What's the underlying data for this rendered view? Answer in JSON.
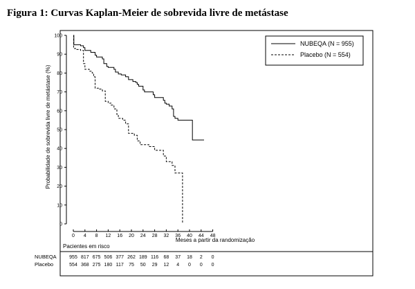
{
  "figure_title": "Figura 1: Curvas Kaplan-Meier de sobrevida livre de metástase",
  "chart_data": {
    "type": "line",
    "title": "Figura 1: Curvas Kaplan-Meier de sobrevida livre de metástase",
    "xlabel": "Meses a partir da randomização",
    "ylabel": "Probabilidade de sobrevida livre de metástase (%)",
    "xlim": [
      0,
      48
    ],
    "ylim": [
      0,
      100
    ],
    "xticks": [
      0,
      4,
      8,
      12,
      16,
      20,
      24,
      28,
      32,
      36,
      40,
      44,
      48
    ],
    "yticks": [
      0,
      10,
      20,
      30,
      40,
      50,
      60,
      70,
      80,
      90,
      100
    ],
    "grid": false,
    "legend_position": "top-right",
    "series": [
      {
        "name": "NUBEQA (N = 955)",
        "style": "solid",
        "color": "#000000",
        "steps": [
          [
            0,
            100
          ],
          [
            0.2,
            95
          ],
          [
            2.5,
            94.5
          ],
          [
            3.5,
            93.5
          ],
          [
            4,
            92
          ],
          [
            6,
            91
          ],
          [
            7.5,
            89.5
          ],
          [
            8,
            88.5
          ],
          [
            10,
            87.5
          ],
          [
            10.5,
            85
          ],
          [
            11.5,
            83.5
          ],
          [
            12,
            83
          ],
          [
            14,
            82
          ],
          [
            14.5,
            80.5
          ],
          [
            15.5,
            79.5
          ],
          [
            16.5,
            79
          ],
          [
            18,
            78
          ],
          [
            19,
            76.5
          ],
          [
            20.5,
            75.5
          ],
          [
            21.5,
            75
          ],
          [
            22,
            74
          ],
          [
            22.5,
            73
          ],
          [
            24,
            71
          ],
          [
            24.5,
            70
          ],
          [
            27.5,
            68.5
          ],
          [
            28,
            67
          ],
          [
            31,
            65.5
          ],
          [
            31.5,
            64
          ],
          [
            32,
            63.5
          ],
          [
            33,
            62.5
          ],
          [
            34,
            61
          ],
          [
            34.5,
            57
          ],
          [
            35,
            56
          ],
          [
            36,
            55
          ],
          [
            39,
            55
          ],
          [
            40.5,
            55
          ],
          [
            41,
            44.5
          ],
          [
            45,
            44.5
          ]
        ]
      },
      {
        "name": "Placebo (N = 554)",
        "style": "dashed",
        "color": "#000000",
        "steps": [
          [
            0,
            100
          ],
          [
            0.1,
            93
          ],
          [
            1.2,
            92.5
          ],
          [
            2.5,
            92
          ],
          [
            3.5,
            85
          ],
          [
            4,
            82
          ],
          [
            5.5,
            81
          ],
          [
            6.5,
            80
          ],
          [
            7,
            78
          ],
          [
            7.5,
            72
          ],
          [
            9,
            71.5
          ],
          [
            10,
            70.5
          ],
          [
            11,
            65
          ],
          [
            12,
            64
          ],
          [
            13,
            63
          ],
          [
            14,
            61
          ],
          [
            15,
            58
          ],
          [
            15.5,
            56
          ],
          [
            17,
            55
          ],
          [
            18,
            53
          ],
          [
            19,
            48
          ],
          [
            21,
            47
          ],
          [
            22,
            44
          ],
          [
            23,
            42
          ],
          [
            26,
            41
          ],
          [
            28,
            39
          ],
          [
            31,
            36
          ],
          [
            32,
            33
          ],
          [
            34,
            31
          ],
          [
            35,
            27
          ],
          [
            37.5,
            27
          ],
          [
            37.6,
            0
          ]
        ]
      }
    ]
  },
  "risk_table": {
    "header": "Pacientes em risco",
    "timepoints": [
      "0",
      "4",
      "8",
      "12",
      "16",
      "20",
      "24",
      "28",
      "32",
      "36",
      "40",
      "44",
      "48"
    ],
    "rows": [
      {
        "label": "NUBEQA",
        "values": [
          "955",
          "817",
          "675",
          "506",
          "377",
          "262",
          "189",
          "116",
          "68",
          "37",
          "18",
          "2",
          "0"
        ]
      },
      {
        "label": "Placebo",
        "values": [
          "554",
          "368",
          "275",
          "180",
          "117",
          "75",
          "50",
          "29",
          "12",
          "4",
          "0",
          "0",
          "0"
        ]
      }
    ]
  }
}
